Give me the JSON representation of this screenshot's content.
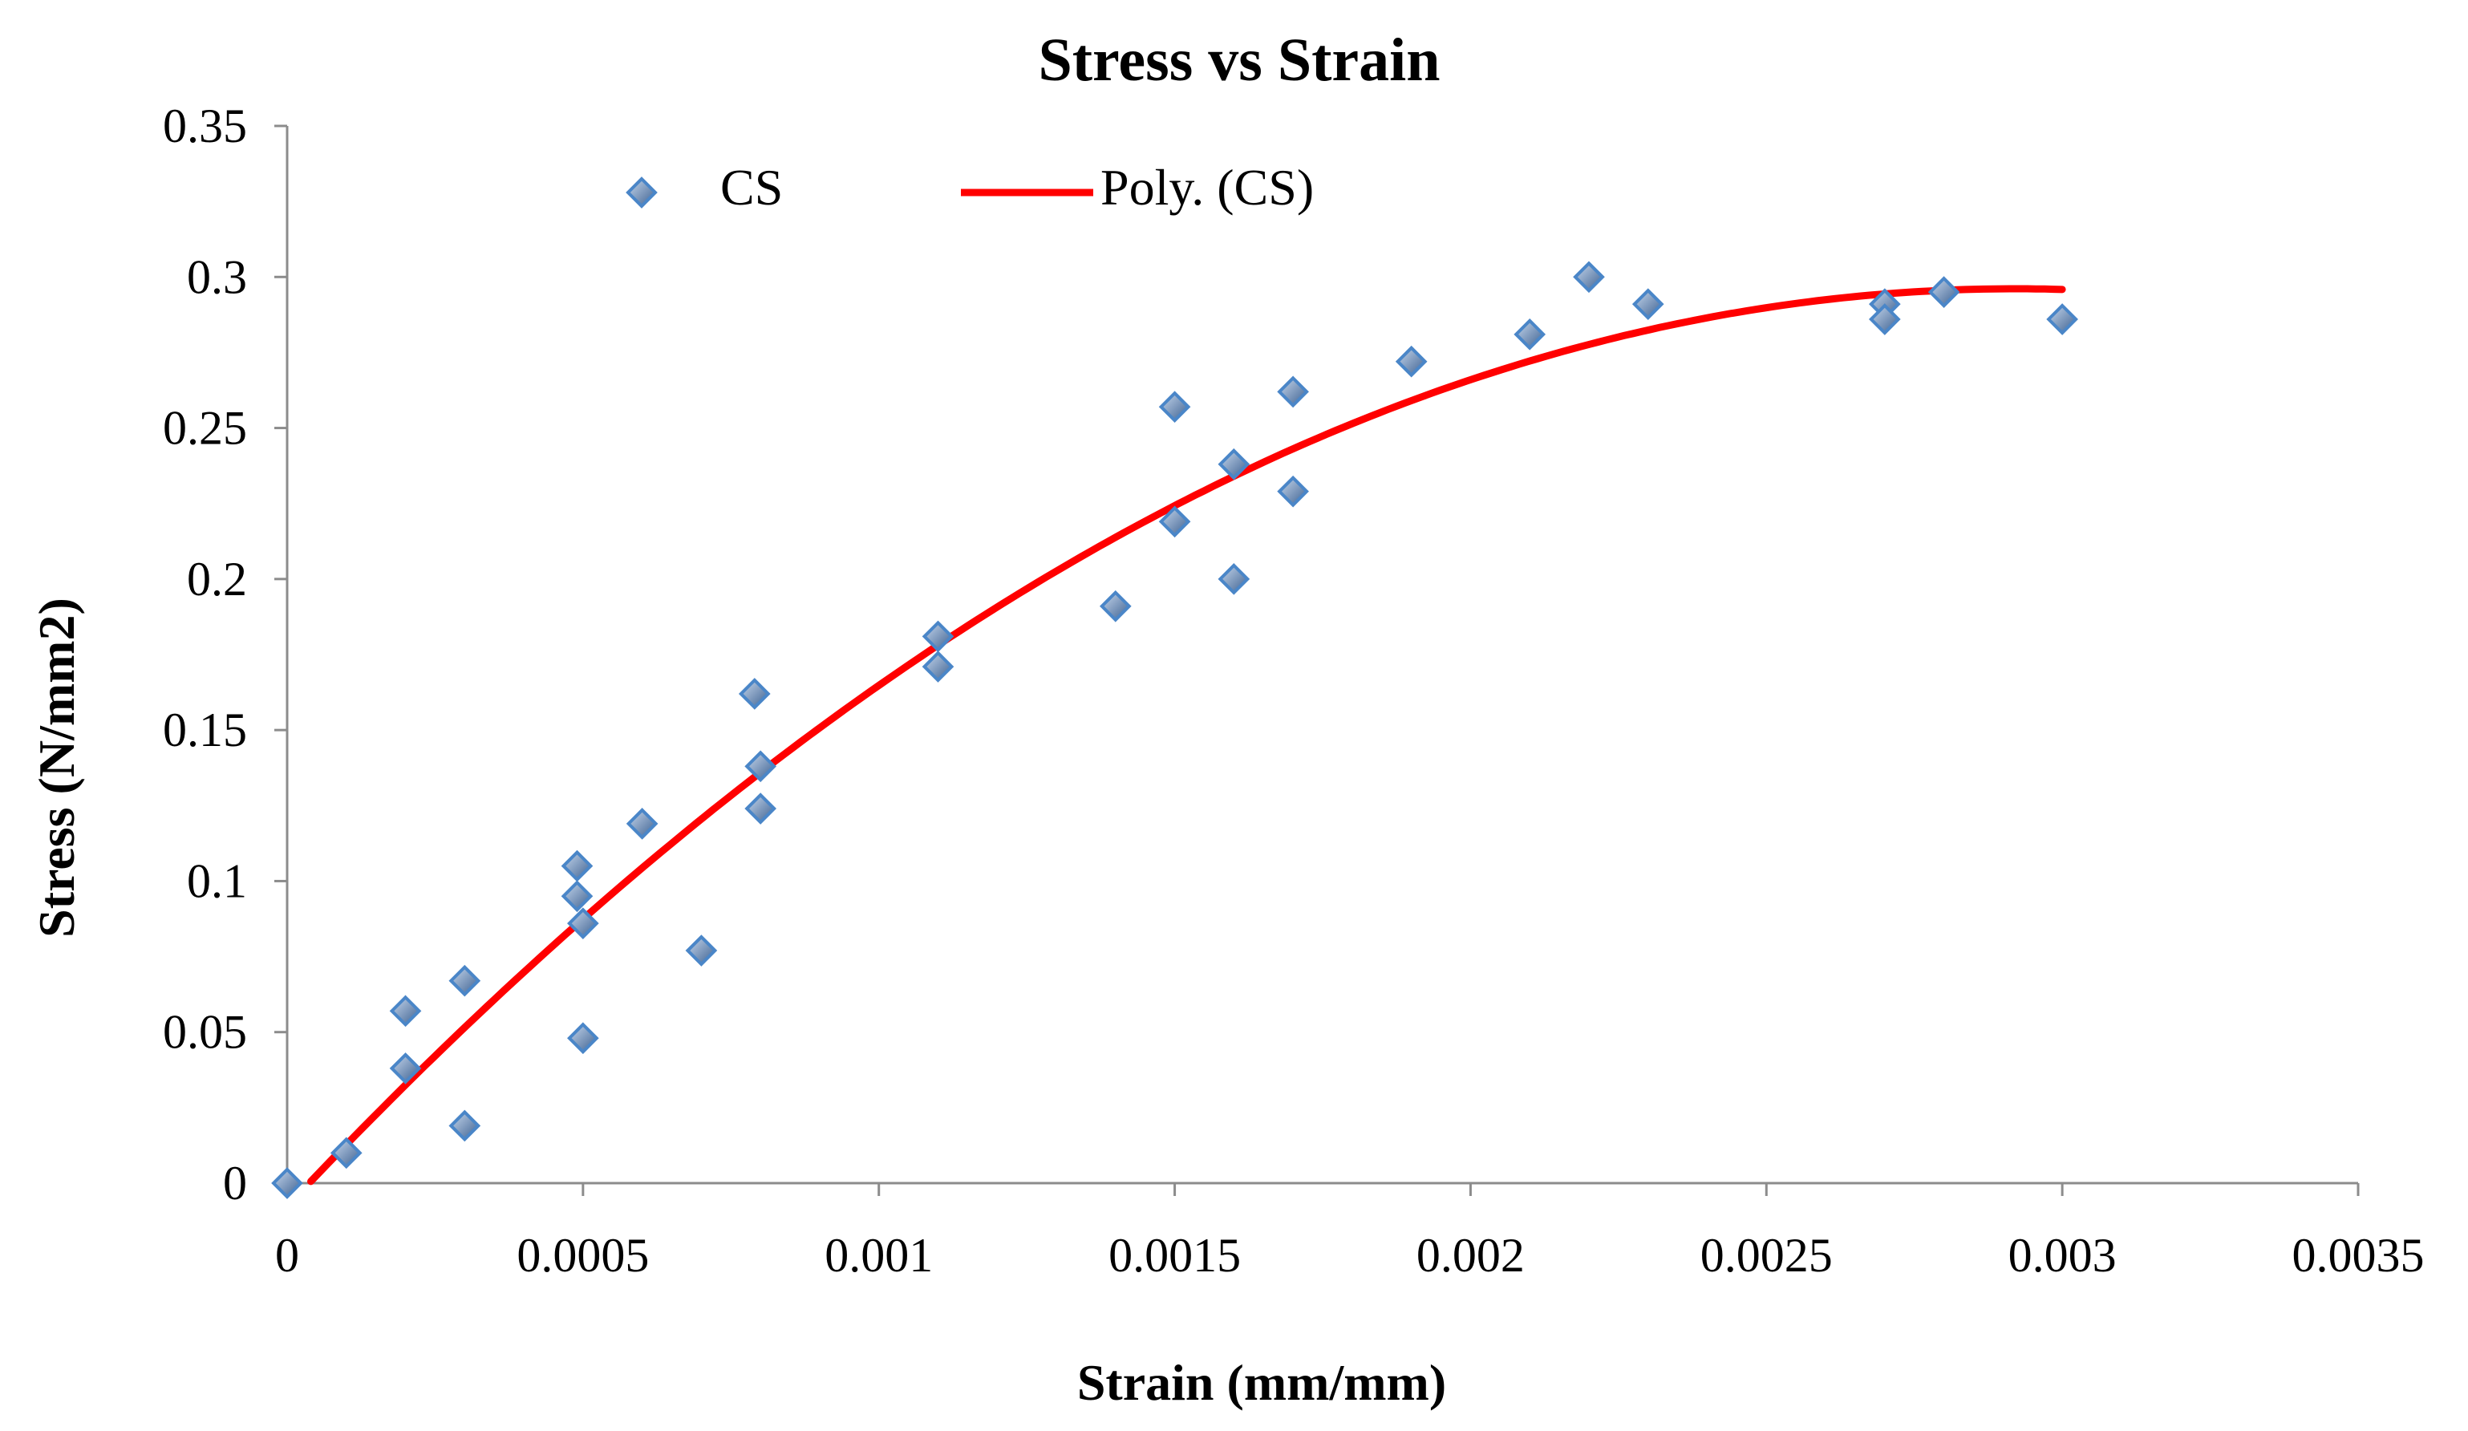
{
  "chart_data": {
    "type": "scatter",
    "title": "Stress vs Strain",
    "xlabel": "Strain (mm/mm)",
    "ylabel": "Stress (N/mm2)",
    "xlim": [
      0,
      0.0035
    ],
    "ylim": [
      0,
      0.35
    ],
    "x_ticks": [
      0,
      0.0005,
      0.001,
      0.0015,
      0.002,
      0.0025,
      0.003,
      0.0035
    ],
    "x_tick_labels": [
      "0",
      "0.0005",
      "0.001",
      "0.0015",
      "0.002",
      "0.0025",
      "0.003",
      "0.0035"
    ],
    "y_ticks": [
      0,
      0.05,
      0.1,
      0.15,
      0.2,
      0.25,
      0.3,
      0.35
    ],
    "y_tick_labels": [
      "0",
      "0.05",
      "0.1",
      "0.15",
      "0.2",
      "0.25",
      "0.3",
      "0.35"
    ],
    "grid": false,
    "legend_position": "top-center",
    "series": [
      {
        "name": "CS",
        "kind": "scatter",
        "marker": "diamond",
        "color": "#4a86c8",
        "points": [
          [
            0,
            0
          ],
          [
            0.0001,
            0.01
          ],
          [
            0.0002,
            0.038
          ],
          [
            0.0002,
            0.057
          ],
          [
            0.0003,
            0.019
          ],
          [
            0.0003,
            0.067
          ],
          [
            0.00049,
            0.105
          ],
          [
            0.00049,
            0.095
          ],
          [
            0.0005,
            0.086
          ],
          [
            0.0005,
            0.048
          ],
          [
            0.0006,
            0.119
          ],
          [
            0.0007,
            0.077
          ],
          [
            0.00079,
            0.162
          ],
          [
            0.0008,
            0.138
          ],
          [
            0.0008,
            0.124
          ],
          [
            0.0011,
            0.181
          ],
          [
            0.0011,
            0.171
          ],
          [
            0.0014,
            0.191
          ],
          [
            0.0015,
            0.257
          ],
          [
            0.0015,
            0.219
          ],
          [
            0.0016,
            0.238
          ],
          [
            0.0016,
            0.2
          ],
          [
            0.0017,
            0.262
          ],
          [
            0.0017,
            0.229
          ],
          [
            0.0019,
            0.272
          ],
          [
            0.0021,
            0.281
          ],
          [
            0.0022,
            0.3
          ],
          [
            0.0023,
            0.291
          ],
          [
            0.0027,
            0.291
          ],
          [
            0.0027,
            0.286
          ],
          [
            0.0028,
            0.295
          ],
          [
            0.003,
            0.286
          ]
        ]
      },
      {
        "name": "Poly. (CS)",
        "kind": "line",
        "color": "#ff0000",
        "fit": "polynomial order 2",
        "x_range": [
          4e-05,
          0.003
        ],
        "points": [
          [
            4e-05,
            0
          ],
          [
            0.0001,
            0.011
          ],
          [
            0.0002,
            0.03
          ],
          [
            0.0003,
            0.049
          ],
          [
            0.0005,
            0.086
          ],
          [
            0.0008,
            0.135
          ],
          [
            0.0011,
            0.178
          ],
          [
            0.0015,
            0.224
          ],
          [
            0.0017,
            0.244
          ],
          [
            0.002,
            0.266
          ],
          [
            0.0023,
            0.283
          ],
          [
            0.0025,
            0.29
          ],
          [
            0.0028,
            0.296
          ],
          [
            0.003,
            0.296
          ]
        ]
      }
    ]
  }
}
